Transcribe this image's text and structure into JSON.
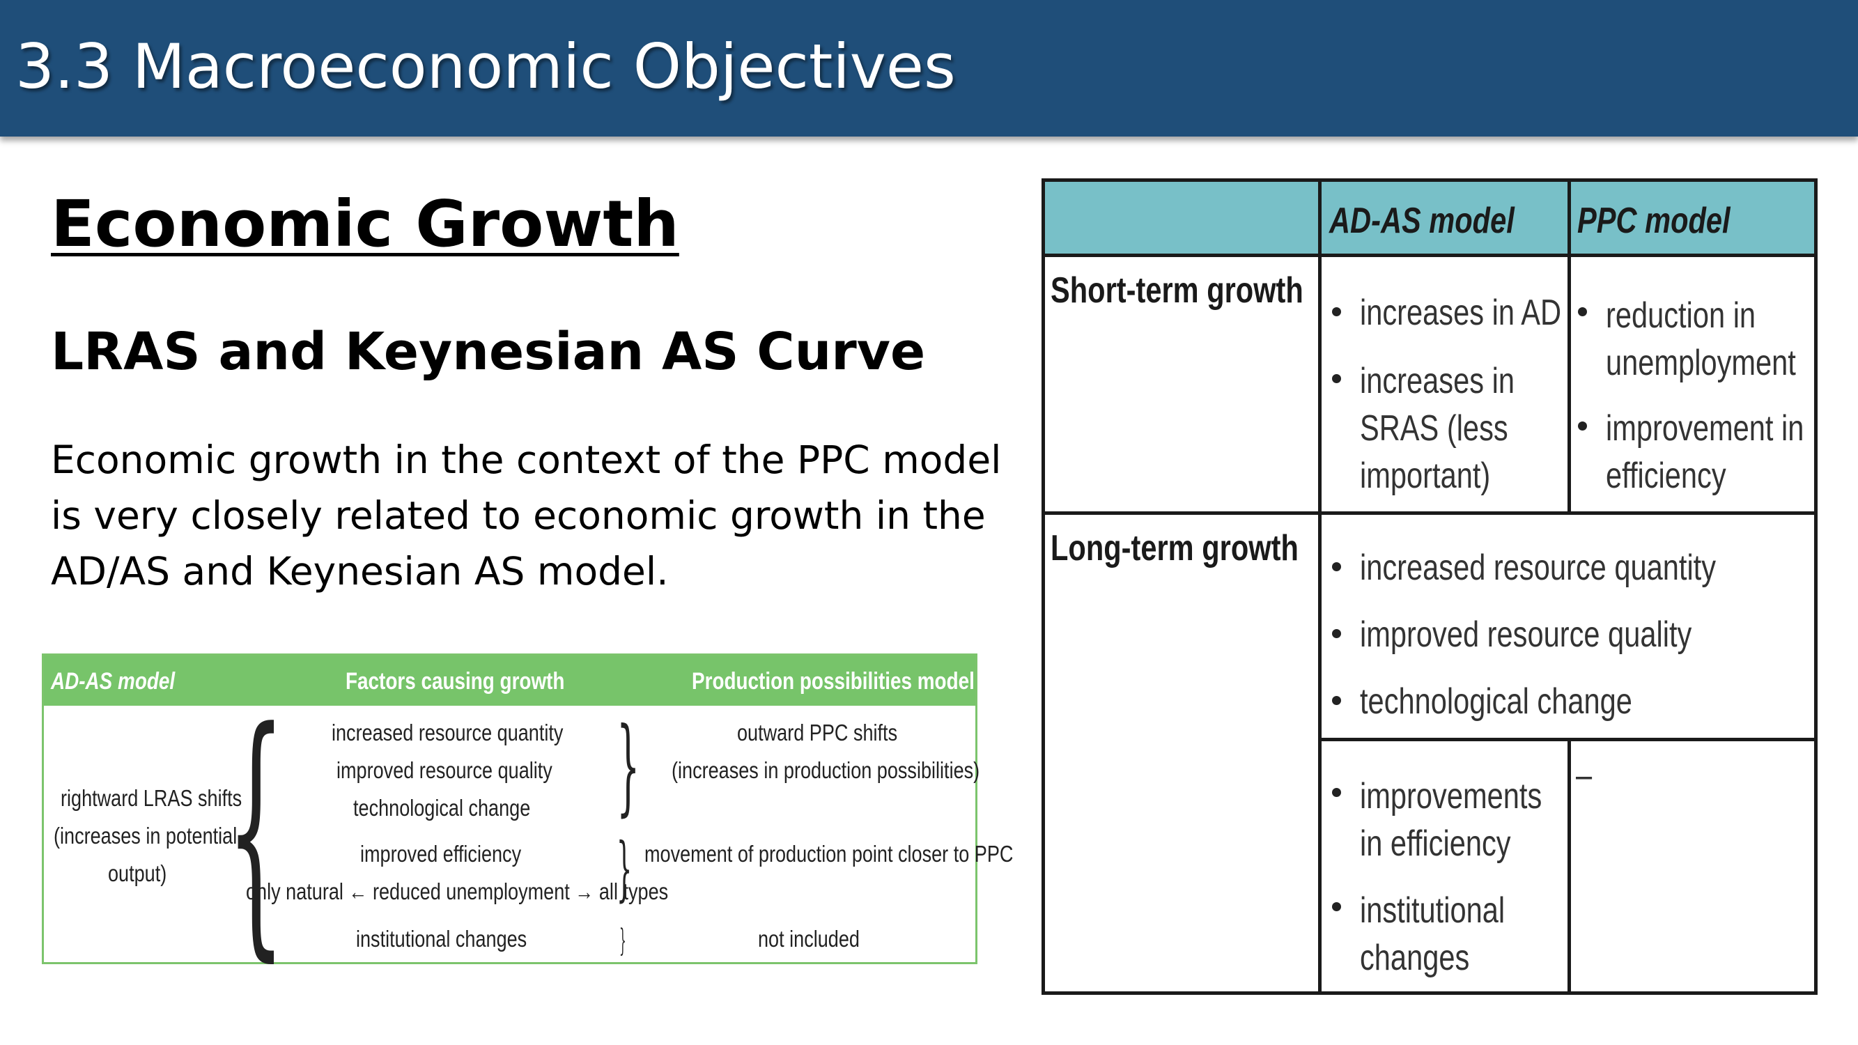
{
  "header": {
    "title": "3.3 Macroeconomic Objectives"
  },
  "main": {
    "heading": "Economic Growth",
    "subheading": "LRAS and Keynesian AS Curve",
    "paragraph": "Economic growth in the context of the PPC model is very closely related to economic growth in the AD/AS and Keynesian AS model."
  },
  "factors_table": {
    "headers": [
      "AD-AS model",
      "Factors causing growth",
      "Production possibilities model"
    ],
    "ad_as_cell": [
      "rightward LRAS shifts",
      "(increases in potential",
      "output)"
    ],
    "factors": [
      "increased resource quantity",
      "improved resource quality",
      "technological change",
      "improved efficiency",
      "only natural ← reduced unemployment → all types",
      "institutional changes"
    ],
    "ppm": [
      "outward PPC shifts",
      "(increases in production possibilities)",
      "movement of production point closer to PPC",
      "not included"
    ]
  },
  "comparison_table": {
    "headers": [
      "AD-AS model",
      "PPC model"
    ],
    "rows": [
      {
        "label": "Short-term growth",
        "ad_as": [
          "increases in AD",
          "increases in SRAS (less important)"
        ],
        "ppc": [
          "reduction in unemployment",
          "improvement in efficiency"
        ]
      },
      {
        "label": "Long-term growth",
        "shared": [
          "increased resource quantity",
          "improved resource quality",
          "technological change"
        ],
        "ad_as": [
          "improvements in efficiency",
          "institutional changes"
        ],
        "ppc": [
          "–"
        ]
      }
    ]
  }
}
